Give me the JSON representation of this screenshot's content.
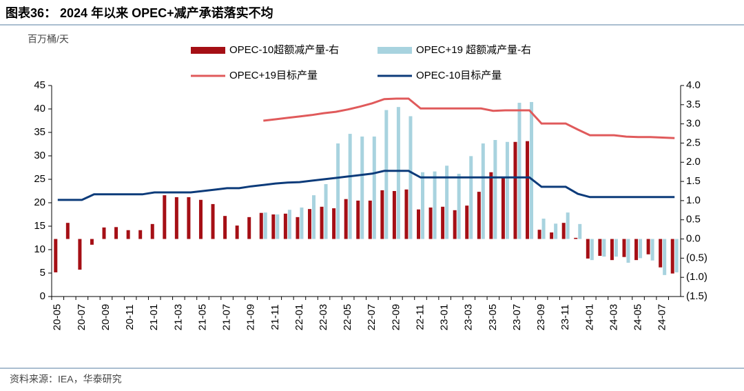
{
  "chart_data": {
    "type": "bar_line",
    "title": "图表36：  2024 年以来 OPEC+减产承诺落实不均",
    "y_label": "百万桶/天",
    "source": "资料来源：IEA，华泰研究",
    "categories": [
      "20-05",
      null,
      "20-07",
      null,
      "20-09",
      null,
      "20-11",
      null,
      "21-01",
      null,
      "21-03",
      null,
      "21-05",
      null,
      "21-07",
      null,
      "21-09",
      null,
      "21-11",
      null,
      "22-01",
      null,
      "22-03",
      null,
      "22-05",
      null,
      "22-07",
      null,
      "22-09",
      null,
      "22-11",
      null,
      "23-01",
      null,
      "23-03",
      null,
      "23-05",
      null,
      "23-07",
      null,
      "23-09",
      null,
      "23-11",
      null,
      "24-01",
      null,
      "24-03",
      null,
      "24-05",
      null,
      "24-07",
      null
    ],
    "ylim": [
      0,
      45
    ],
    "yticks": [
      0,
      5,
      10,
      15,
      20,
      25,
      30,
      35,
      40,
      45
    ],
    "y2lim": [
      -1.5,
      4.0
    ],
    "y2ticks": [
      {
        "value": -1.5,
        "label": "(1.5)"
      },
      {
        "value": -1,
        "label": "(1.0)"
      },
      {
        "value": -0.5,
        "label": "(0.5)"
      },
      {
        "value": 0,
        "label": "0.0"
      },
      0.5,
      {
        "value": 1,
        "label": "1.0"
      },
      1.5,
      {
        "value": 2,
        "label": "2.0"
      },
      2.5,
      {
        "value": 3,
        "label": "3.0"
      },
      3.5,
      {
        "value": 4,
        "label": "4.0"
      }
    ],
    "series": [
      {
        "name": "OPEC-10超额减产量-右",
        "type": "bar",
        "axis": "y2",
        "color": "#a50f15",
        "values": [
          -0.87,
          0.42,
          -0.8,
          -0.15,
          0.3,
          0.31,
          0.23,
          0.23,
          0.39,
          1.14,
          1.09,
          1.09,
          1.02,
          0.91,
          0.6,
          0.35,
          0.57,
          0.68,
          0.64,
          0.66,
          0.57,
          0.78,
          0.84,
          0.8,
          1.04,
          1.0,
          1.0,
          1.27,
          1.25,
          1.29,
          0.77,
          0.82,
          0.84,
          0.75,
          0.87,
          1.23,
          1.74,
          1.61,
          2.53,
          2.55,
          0.24,
          0.17,
          0.42,
          0.03,
          -0.51,
          -0.44,
          -0.55,
          -0.47,
          -0.55,
          -0.4,
          -0.74,
          -0.9
        ]
      },
      {
        "name": "OPEC+19 超额减产量-右",
        "type": "bar",
        "axis": "y2",
        "color": "#a8d3df",
        "values": [
          null,
          null,
          null,
          null,
          null,
          null,
          null,
          null,
          null,
          null,
          null,
          null,
          null,
          null,
          null,
          null,
          null,
          0.69,
          0.64,
          0.76,
          0.82,
          1.14,
          1.43,
          2.49,
          2.74,
          2.67,
          2.67,
          3.36,
          3.44,
          3.2,
          1.74,
          1.76,
          1.91,
          1.7,
          2.16,
          2.49,
          2.58,
          2.53,
          3.55,
          3.57,
          0.53,
          0.4,
          0.69,
          0.39,
          -0.55,
          -0.46,
          -0.46,
          -0.62,
          -0.5,
          -0.56,
          -0.94,
          -0.87
        ]
      },
      {
        "name": "OPEC+19目标产量",
        "type": "line",
        "color": "#e05a5b",
        "values": [
          null,
          null,
          null,
          null,
          null,
          null,
          null,
          null,
          null,
          null,
          null,
          null,
          null,
          null,
          null,
          null,
          null,
          37.5,
          37.8,
          38.1,
          38.4,
          38.7,
          39.1,
          39.4,
          39.9,
          40.5,
          41.2,
          42.1,
          42.2,
          42.2,
          40.1,
          40.1,
          40.1,
          40.1,
          40.1,
          40.1,
          39.6,
          39.7,
          39.7,
          39.7,
          36.9,
          36.9,
          36.9,
          35.6,
          34.4,
          34.4,
          34.4,
          34.1,
          34.0,
          34.0,
          33.9,
          33.8
        ]
      },
      {
        "name": "OPEC-10目标产量",
        "type": "line",
        "color": "#0c3b7a",
        "values": [
          20.6,
          20.6,
          20.6,
          21.8,
          21.8,
          21.8,
          21.8,
          21.8,
          22.2,
          22.2,
          22.2,
          22.2,
          22.5,
          22.8,
          23.1,
          23.1,
          23.5,
          23.8,
          24.1,
          24.3,
          24.4,
          24.7,
          25.0,
          25.3,
          25.6,
          25.9,
          26.2,
          26.8,
          26.8,
          26.8,
          25.4,
          25.4,
          25.4,
          25.4,
          25.4,
          25.4,
          25.4,
          25.4,
          25.4,
          25.4,
          23.4,
          23.4,
          23.4,
          21.9,
          21.2,
          21.2,
          21.2,
          21.2,
          21.2,
          21.2,
          21.2,
          21.2
        ]
      }
    ]
  }
}
